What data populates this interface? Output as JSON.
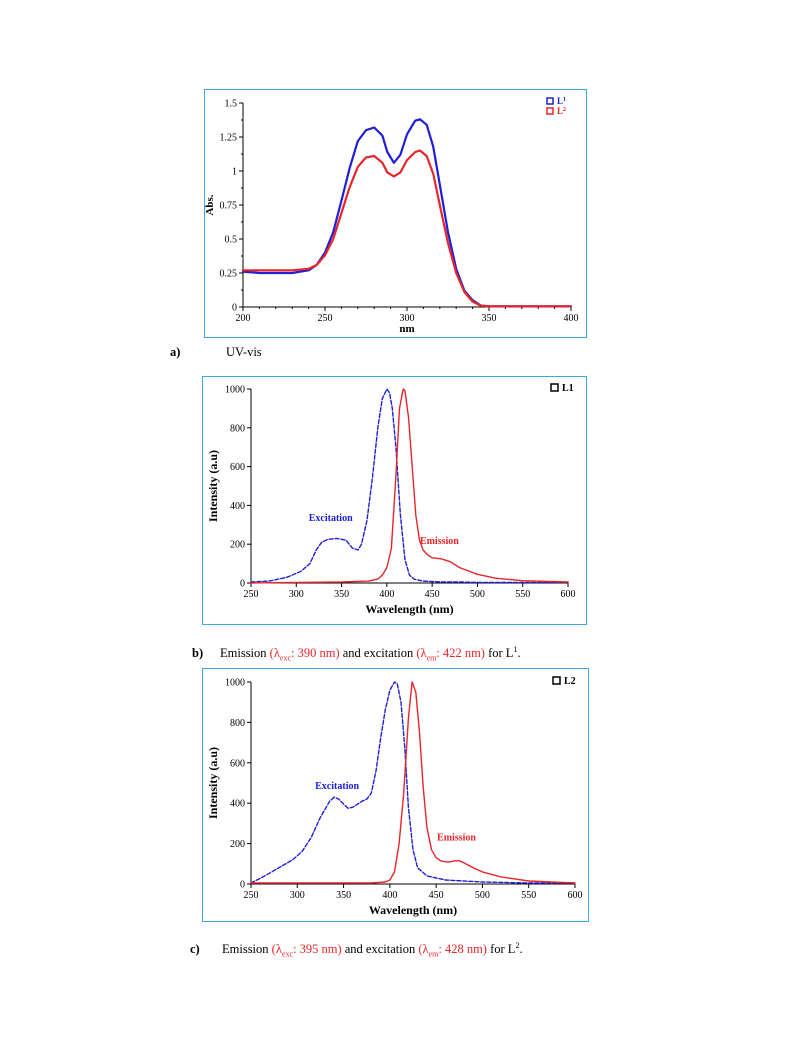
{
  "figures": [
    {
      "caption": {
        "label": "a)",
        "text": "UV-vis"
      }
    },
    {
      "caption": {
        "label": "b)",
        "t1": "Emission ",
        "r1": "(λ",
        "r1s": "exc",
        "r1e": ": 390 nm)",
        "t2": " and excitation ",
        "r2": "(λ",
        "r2s": "em",
        "r2e": ": 422 nm)",
        "t3": " for L",
        "sup": "1",
        "t4": "."
      }
    },
    {
      "caption": {
        "label": "c)",
        "t1": "Emission ",
        "r1": "(λ",
        "r1s": "exc",
        "r1e": ": 395 nm)",
        "t2": " and excitation ",
        "r2": "(λ",
        "r2s": "em",
        "r2e": ": 428 nm)",
        "t3": " for L",
        "sup": "2",
        "t4": "."
      }
    }
  ],
  "chart_data": [
    {
      "type": "line",
      "title": "",
      "xlabel": "nm",
      "ylabel": "Abs.",
      "xlim": [
        200,
        400
      ],
      "ylim": [
        0,
        1.5
      ],
      "xticks": [
        200,
        250,
        300,
        350,
        400
      ],
      "yticks": [
        0,
        0.25,
        0.5,
        0.75,
        1,
        1.25,
        1.5
      ],
      "ytick_labels": [
        "0",
        "0.25",
        "0.5",
        "0.75",
        "1",
        "1.25",
        "1.5"
      ],
      "grid": false,
      "legend": "top-right",
      "series": [
        {
          "name": "L",
          "name_sup": "1",
          "color": "#1f1fd6",
          "dashed": false,
          "x": [
            200,
            210,
            220,
            230,
            240,
            245,
            250,
            255,
            260,
            265,
            270,
            275,
            280,
            285,
            288,
            292,
            296,
            300,
            305,
            308,
            312,
            316,
            320,
            325,
            330,
            335,
            340,
            345,
            350,
            360,
            380,
            400
          ],
          "y": [
            0.26,
            0.25,
            0.25,
            0.25,
            0.27,
            0.31,
            0.4,
            0.55,
            0.78,
            1.02,
            1.22,
            1.3,
            1.32,
            1.26,
            1.14,
            1.06,
            1.12,
            1.27,
            1.37,
            1.38,
            1.34,
            1.18,
            0.9,
            0.55,
            0.28,
            0.12,
            0.05,
            0.01,
            0.005,
            0.005,
            0.005,
            0.005
          ]
        },
        {
          "name": "L",
          "name_sup": "2",
          "color": "#e8252a",
          "dashed": false,
          "x": [
            200,
            210,
            220,
            230,
            240,
            245,
            250,
            255,
            260,
            265,
            270,
            275,
            280,
            285,
            288,
            292,
            296,
            300,
            305,
            308,
            312,
            316,
            320,
            325,
            330,
            335,
            340,
            345,
            350,
            360,
            380,
            400
          ],
          "y": [
            0.27,
            0.27,
            0.27,
            0.27,
            0.28,
            0.31,
            0.38,
            0.5,
            0.69,
            0.88,
            1.03,
            1.1,
            1.11,
            1.06,
            0.99,
            0.96,
            0.99,
            1.08,
            1.14,
            1.15,
            1.11,
            0.98,
            0.75,
            0.47,
            0.25,
            0.11,
            0.04,
            0.01,
            0.005,
            0.005,
            0.005,
            0.005
          ]
        }
      ]
    },
    {
      "type": "line",
      "title": "",
      "xlabel": "Wavelength (nm)",
      "ylabel": "Intensity (a.u)",
      "xlim": [
        250,
        600
      ],
      "ylim": [
        0,
        1000
      ],
      "xticks": [
        250,
        300,
        350,
        400,
        450,
        500,
        550,
        600
      ],
      "yticks": [
        0,
        200,
        400,
        600,
        800,
        1000
      ],
      "ytick_labels": [
        "0",
        "200",
        "400",
        "600",
        "800",
        "1000"
      ],
      "grid": false,
      "legend": "top-right",
      "legend_text": "L1",
      "annotations": [
        {
          "text": "Excitation",
          "x": 338,
          "y": 320,
          "color": "#1f1fd6"
        },
        {
          "text": "Emission",
          "x": 458,
          "y": 200,
          "color": "#e8252a"
        }
      ],
      "series": [
        {
          "name": "Excitation",
          "color": "#1f1fd6",
          "dashed": true,
          "x": [
            250,
            270,
            290,
            305,
            315,
            322,
            328,
            335,
            345,
            355,
            362,
            368,
            372,
            378,
            384,
            390,
            395,
            400,
            403,
            406,
            410,
            415,
            420,
            425,
            430,
            440,
            460,
            480,
            500,
            550,
            600
          ],
          "y": [
            5,
            10,
            30,
            60,
            100,
            170,
            210,
            225,
            230,
            220,
            180,
            170,
            200,
            320,
            540,
            800,
            950,
            1000,
            980,
            900,
            700,
            350,
            120,
            40,
            20,
            10,
            5,
            5,
            3,
            3,
            3
          ]
        },
        {
          "name": "Emission",
          "color": "#e8252a",
          "dashed": false,
          "x": [
            250,
            300,
            350,
            380,
            390,
            395,
            400,
            405,
            410,
            414,
            418,
            420,
            424,
            428,
            432,
            436,
            440,
            445,
            450,
            460,
            470,
            480,
            500,
            520,
            550,
            600
          ],
          "y": [
            0,
            3,
            5,
            10,
            20,
            40,
            80,
            180,
            550,
            900,
            1000,
            990,
            850,
            600,
            350,
            220,
            170,
            145,
            130,
            125,
            110,
            80,
            45,
            25,
            12,
            5
          ]
        }
      ]
    },
    {
      "type": "line",
      "title": "",
      "xlabel": "Wavelength (nm)",
      "ylabel": "Intensity (a.u)",
      "xlim": [
        250,
        600
      ],
      "ylim": [
        0,
        1000
      ],
      "xticks": [
        250,
        300,
        350,
        400,
        450,
        500,
        550,
        600
      ],
      "yticks": [
        0,
        200,
        400,
        600,
        800,
        1000
      ],
      "ytick_labels": [
        "0",
        "200",
        "400",
        "600",
        "800",
        "1000"
      ],
      "grid": false,
      "legend": "top-right",
      "legend_text": "L2",
      "annotations": [
        {
          "text": "Excitation",
          "x": 343,
          "y": 470,
          "color": "#1f1fd6"
        },
        {
          "text": "Emission",
          "x": 472,
          "y": 215,
          "color": "#e8252a"
        }
      ],
      "series": [
        {
          "name": "Excitation",
          "color": "#1f1fd6",
          "dashed": true,
          "x": [
            250,
            265,
            280,
            295,
            305,
            315,
            325,
            335,
            340,
            345,
            350,
            355,
            360,
            365,
            370,
            375,
            380,
            385,
            390,
            395,
            400,
            405,
            408,
            412,
            416,
            420,
            425,
            430,
            440,
            460,
            500,
            550,
            600
          ],
          "y": [
            5,
            40,
            80,
            120,
            160,
            230,
            330,
            410,
            430,
            420,
            395,
            375,
            380,
            395,
            410,
            420,
            450,
            560,
            720,
            860,
            960,
            1000,
            990,
            900,
            680,
            380,
            170,
            80,
            40,
            20,
            10,
            5,
            5
          ]
        },
        {
          "name": "Emission",
          "color": "#e8252a",
          "dashed": false,
          "x": [
            250,
            300,
            350,
            380,
            395,
            400,
            405,
            410,
            415,
            420,
            424,
            428,
            432,
            436,
            440,
            445,
            450,
            455,
            460,
            465,
            470,
            475,
            480,
            490,
            500,
            520,
            550,
            600
          ],
          "y": [
            5,
            5,
            5,
            5,
            10,
            20,
            60,
            200,
            450,
            820,
            1000,
            950,
            750,
            480,
            280,
            170,
            130,
            115,
            110,
            110,
            115,
            115,
            105,
            80,
            60,
            35,
            15,
            5
          ]
        }
      ]
    }
  ]
}
